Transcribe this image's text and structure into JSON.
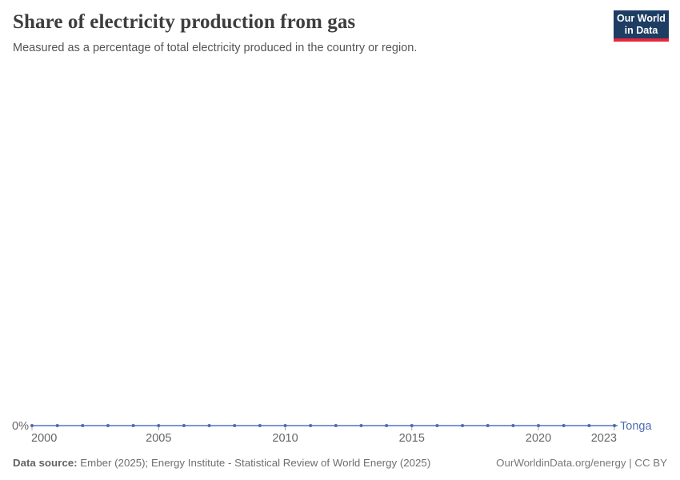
{
  "header": {
    "title": "Share of electricity production from gas",
    "subtitle": "Measured as a percentage of total electricity produced in the country or region."
  },
  "logo": {
    "line1": "Our World",
    "line2": "in Data"
  },
  "colors": {
    "series": "#4d6cb3",
    "series_line": "#6b87c4",
    "axis_text": "#666666",
    "tick_mark": "#a5a5a5",
    "logo_bg": "#1d3d63",
    "logo_accent": "#e5263d"
  },
  "chart_data": {
    "type": "line",
    "title": "Share of electricity production from gas",
    "subtitle": "Measured as a percentage of total electricity produced in the country or region.",
    "unit": "%",
    "xlim": [
      2000,
      2023
    ],
    "ylim": [
      0,
      100
    ],
    "grid": false,
    "legend_position": "end-of-line-label",
    "x_ticks": [
      2000,
      2005,
      2010,
      2015,
      2020,
      2023
    ],
    "y_tick_labels": [
      "0%"
    ],
    "series": [
      {
        "name": "Tonga",
        "color": "#4d6cb3",
        "x": [
          2000,
          2001,
          2002,
          2003,
          2004,
          2005,
          2006,
          2007,
          2008,
          2009,
          2010,
          2011,
          2012,
          2013,
          2014,
          2015,
          2016,
          2017,
          2018,
          2019,
          2020,
          2021,
          2022,
          2023
        ],
        "values": [
          0,
          0,
          0,
          0,
          0,
          0,
          0,
          0,
          0,
          0,
          0,
          0,
          0,
          0,
          0,
          0,
          0,
          0,
          0,
          0,
          0,
          0,
          0,
          0
        ]
      }
    ]
  },
  "footer": {
    "source_label": "Data source:",
    "source_text": " Ember (2025); Energy Institute - Statistical Review of World Energy (2025)",
    "right_text": "OurWorldinData.org/energy | CC BY"
  }
}
